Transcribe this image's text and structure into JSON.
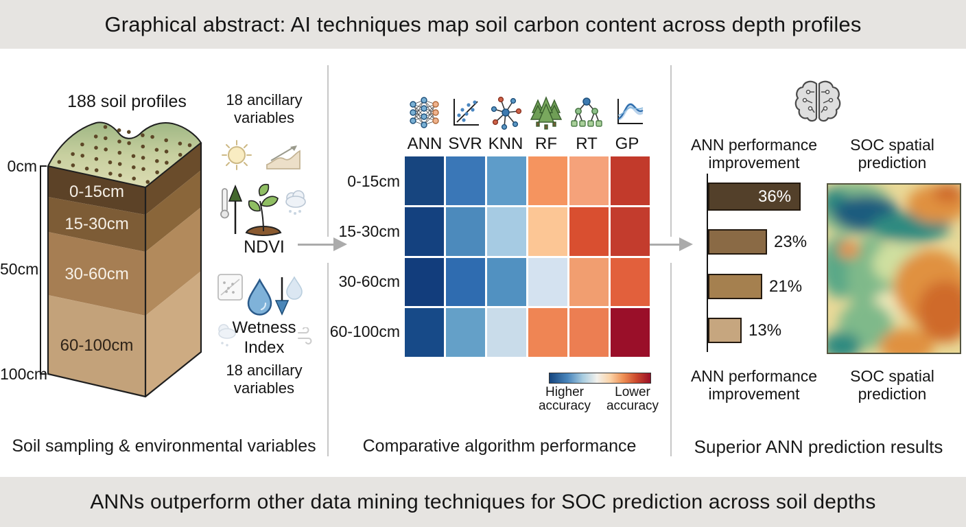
{
  "header": {
    "title": "Graphical abstract: AI techniques map soil carbon content across depth profiles"
  },
  "footer": {
    "banner": "ANNs outperform other data mining techniques for SOC prediction across soil depths"
  },
  "left_panel": {
    "heading": "188 soil profiles",
    "depth_ticks": [
      "0cm",
      "50cm",
      "100cm"
    ],
    "soil_layers": [
      {
        "label": "0-15cm",
        "front_color": "#5c4227",
        "side_color": "#6a4c2b",
        "label_color": "#f5efe6"
      },
      {
        "label": "15-30cm",
        "front_color": "#7d5c36",
        "side_color": "#8a663a",
        "label_color": "#f5efe6"
      },
      {
        "label": "30-60cm",
        "front_color": "#a67e53",
        "side_color": "#b28a5c",
        "label_color": "#f7f1e8"
      },
      {
        "label": "60-100cm",
        "front_color": "#c3a27a",
        "side_color": "#cdab82",
        "label_color": "#2e2318"
      }
    ],
    "ancillary_heading": "18 ancillary variables",
    "ndvi_label": "NDVI",
    "wetness_label": "Wetness Index",
    "ancillary_footer": "18 ancillary variables",
    "caption": "Soil sampling & environmental variables"
  },
  "middle_panel": {
    "algorithms": [
      "ANN",
      "SVR",
      "KNN",
      "RF",
      "RT",
      "GP"
    ],
    "depth_rows": [
      "0-15cm",
      "15-30cm",
      "30-60cm",
      "60-100cm"
    ],
    "heatmap_colors": [
      [
        "#17457f",
        "#3a77b7",
        "#5e9cc9",
        "#f5945f",
        "#f5a27a",
        "#c23a2b"
      ],
      [
        "#14417f",
        "#4c8abc",
        "#a6cbe3",
        "#fcc695",
        "#d94f30",
        "#c33c2d"
      ],
      [
        "#123d7c",
        "#2f6cb0",
        "#5191c1",
        "#d4e2f0",
        "#f19e70",
        "#e2603c"
      ],
      [
        "#174a88",
        "#64a0c8",
        "#c9dcea",
        "#ef8554",
        "#ec7e52",
        "#9a0f29"
      ]
    ],
    "legend_higher": "Higher accuracy",
    "legend_lower": "Lower accuracy",
    "caption": "Comparative algorithm performance"
  },
  "right_panel": {
    "bar_heading": "ANN performance improvement",
    "map_heading": "SOC spatial prediction",
    "bars": [
      {
        "label": "36%",
        "value": 36,
        "color": "#53402a",
        "label_inside": true
      },
      {
        "label": "23%",
        "value": 23,
        "color": "#8a6a45",
        "label_inside": false
      },
      {
        "label": "21%",
        "value": 21,
        "color": "#a5804f",
        "label_inside": false
      },
      {
        "label": "13%",
        "value": 13,
        "color": "#c6a67f",
        "label_inside": false
      }
    ],
    "bar_caption": "ANN performance improvement",
    "map_caption": "SOC spatial prediction",
    "caption": "Superior ANN prediction results"
  },
  "accent_colors": {
    "higher_accuracy_blue": "#17457f",
    "lower_accuracy_red": "#9a0f29",
    "arrow_gray": "#ababab"
  }
}
